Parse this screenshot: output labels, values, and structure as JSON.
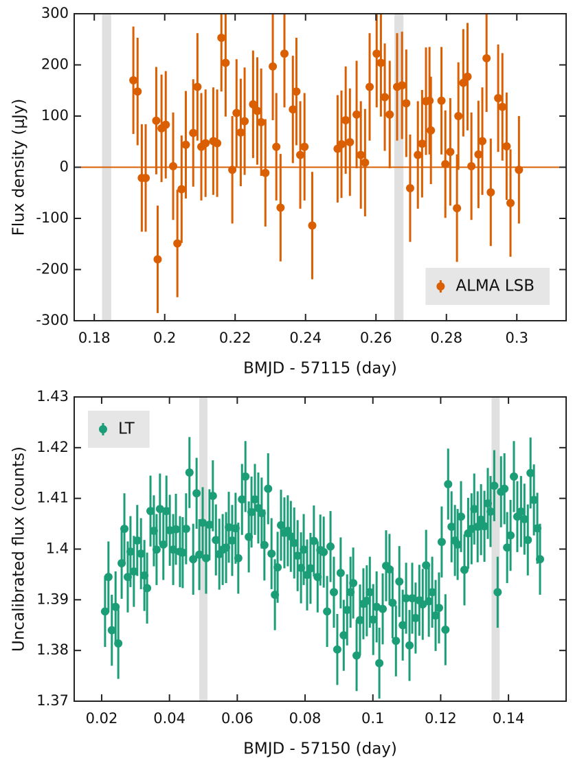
{
  "chart_data": [
    {
      "type": "scatter",
      "xlabel": "BMJD - 57115 (day)",
      "ylabel": "Flux density (μJy)",
      "xlim": [
        0.1743,
        0.314
      ],
      "xticks": [
        0.18,
        0.2,
        0.22,
        0.24,
        0.26,
        0.28,
        0.3
      ],
      "ylim": [
        -300,
        300
      ],
      "yticks": [
        -300,
        -200,
        -100,
        0,
        100,
        200,
        300
      ],
      "bands": [
        [
          0.1822,
          0.1848
        ],
        [
          0.2652,
          0.2678
        ]
      ],
      "band_color": "#e0e0e0",
      "hline": 0,
      "legend": "lower right",
      "x": [
        0.1911,
        0.1923,
        0.1935,
        0.1946,
        0.1976,
        0.198,
        0.1991,
        0.2003,
        0.2024,
        0.2036,
        0.2048,
        0.206,
        0.2081,
        0.2093,
        0.2104,
        0.2116,
        0.2138,
        0.2149,
        0.2161,
        0.2173,
        0.2192,
        0.2204,
        0.2216,
        0.2227,
        0.2251,
        0.2263,
        0.2274,
        0.2286,
        0.2307,
        0.2317,
        0.2329,
        0.234,
        0.2364,
        0.2374,
        0.2385,
        0.2397,
        0.2419,
        0.2491,
        0.2502,
        0.2514,
        0.2526,
        0.2545,
        0.2557,
        0.2569,
        0.2582,
        0.2602,
        0.2614,
        0.2625,
        0.2639,
        0.266,
        0.2674,
        0.2686,
        0.2697,
        0.2719,
        0.2731,
        0.2742,
        0.2752,
        0.2756,
        0.2786,
        0.2797,
        0.2811,
        0.283,
        0.2834,
        0.2848,
        0.286,
        0.2871,
        0.2891,
        0.2902,
        0.2914,
        0.2926,
        0.2947,
        0.2959,
        0.2971,
        0.2982,
        0.3006
      ],
      "series": [
        {
          "name": "ALMA LSB",
          "color": "#d95f02",
          "error": 105,
          "values": [
            170,
            148,
            -21,
            -21,
            91,
            -180,
            76,
            83,
            2,
            -149,
            -43,
            44,
            67,
            157,
            40,
            47,
            51,
            47,
            253,
            204,
            -5,
            106,
            68,
            90,
            123,
            110,
            88,
            -11,
            197,
            40,
            -79,
            222,
            113,
            148,
            24,
            40,
            -114,
            36,
            45,
            92,
            49,
            103,
            24,
            9,
            157,
            222,
            204,
            137,
            103,
            157,
            160,
            125,
            -41,
            24,
            46,
            129,
            130,
            72,
            130,
            6,
            30,
            -80,
            100,
            165,
            177,
            2,
            25,
            51,
            213,
            -49,
            135,
            118,
            41,
            -70,
            -5
          ]
        }
      ]
    },
    {
      "type": "scatter",
      "xlabel": "BMJD - 57150 (day)",
      "ylabel": "Uncalibrated flux (counts)",
      "xlim": [
        0.0119,
        0.157
      ],
      "xticks": [
        0.02,
        0.04,
        0.06,
        0.08,
        0.1,
        0.12,
        0.14
      ],
      "ylim": [
        1.37,
        1.43
      ],
      "yticks": [
        1.37,
        1.38,
        1.39,
        1.4,
        1.41,
        1.42,
        1.43
      ],
      "bands": [
        [
          0.0488,
          0.0512
        ],
        [
          0.135,
          0.1374
        ]
      ],
      "band_color": "#e0e0e0",
      "legend": "upper left",
      "x": [
        0.021,
        0.022,
        0.023,
        0.0241,
        0.0249,
        0.0259,
        0.0267,
        0.0277,
        0.0285,
        0.0295,
        0.0305,
        0.0316,
        0.0326,
        0.0334,
        0.0344,
        0.0354,
        0.0362,
        0.0372,
        0.0382,
        0.0391,
        0.0401,
        0.0411,
        0.0419,
        0.0431,
        0.0439,
        0.0449,
        0.0459,
        0.047,
        0.048,
        0.0488,
        0.0498,
        0.0508,
        0.0518,
        0.0528,
        0.0537,
        0.0547,
        0.0557,
        0.0567,
        0.0575,
        0.0585,
        0.0595,
        0.0603,
        0.0614,
        0.0624,
        0.0634,
        0.0642,
        0.0652,
        0.0662,
        0.0672,
        0.068,
        0.0691,
        0.0701,
        0.0711,
        0.0719,
        0.0729,
        0.0739,
        0.0749,
        0.0758,
        0.0768,
        0.0778,
        0.0788,
        0.0796,
        0.0806,
        0.0816,
        0.0826,
        0.0837,
        0.0845,
        0.0855,
        0.0865,
        0.0875,
        0.0885,
        0.0895,
        0.0905,
        0.0914,
        0.0924,
        0.0934,
        0.0942,
        0.0952,
        0.0962,
        0.0972,
        0.0982,
        0.0991,
        0.1001,
        0.1011,
        0.1019,
        0.1029,
        0.1039,
        0.1049,
        0.1058,
        0.1068,
        0.1078,
        0.1088,
        0.1098,
        0.1108,
        0.1116,
        0.1126,
        0.1137,
        0.1147,
        0.1157,
        0.1165,
        0.1175,
        0.1185,
        0.1195,
        0.1203,
        0.1214,
        0.1222,
        0.1232,
        0.1242,
        0.125,
        0.126,
        0.127,
        0.1281,
        0.1291,
        0.1299,
        0.1309,
        0.1319,
        0.1329,
        0.1339,
        0.1347,
        0.1358,
        0.1368,
        0.1378,
        0.1388,
        0.1396,
        0.1406,
        0.1416,
        0.1426,
        0.1437,
        0.1447,
        0.1457,
        0.1465,
        0.1475,
        0.1485,
        0.1493
      ],
      "series": [
        {
          "name": "LT",
          "color": "#1b9e77",
          "error": 0.007,
          "values": [
            1.3877,
            1.3945,
            1.384,
            1.3886,
            1.3814,
            1.3972,
            1.404,
            1.3945,
            1.3995,
            1.3956,
            1.4017,
            1.3991,
            1.3948,
            1.3923,
            1.4075,
            1.4036,
            1.3999,
            1.4079,
            1.4009,
            1.4075,
            1.4037,
            1.3999,
            1.4039,
            1.3995,
            1.3993,
            1.404,
            1.4151,
            1.398,
            1.411,
            1.3989,
            1.4052,
            1.3982,
            1.4048,
            1.4105,
            1.4018,
            1.399,
            1.3999,
            1.4003,
            1.4043,
            1.4017,
            1.4041,
            1.3982,
            1.4098,
            1.4143,
            1.4024,
            1.4073,
            1.4098,
            1.4081,
            1.4071,
            1.4008,
            1.4119,
            1.3991,
            1.391,
            1.3964,
            1.4047,
            1.4032,
            1.4036,
            1.4025,
            1.4012,
            1.3987,
            1.3963,
            1.3999,
            1.3949,
            1.3962,
            1.4016,
            1.3945,
            1.3998,
            1.3994,
            1.3877,
            1.4005,
            1.3915,
            1.3802,
            1.3953,
            1.383,
            1.388,
            1.3915,
            1.3933,
            1.379,
            1.386,
            1.3892,
            1.3898,
            1.3915,
            1.3861,
            1.3886,
            1.3775,
            1.3882,
            1.3967,
            1.396,
            1.3894,
            1.3819,
            1.3936,
            1.385,
            1.3903,
            1.381,
            1.3903,
            1.3864,
            1.3899,
            1.3891,
            1.3968,
            1.3897,
            1.3915,
            1.3869,
            1.3884,
            1.4014,
            1.3841,
            1.4128,
            1.4044,
            1.4017,
            1.4009,
            1.4064,
            1.3959,
            1.4031,
            1.404,
            1.4079,
            1.4044,
            1.4058,
            1.4045,
            1.409,
            1.4074,
            1.4125,
            1.3915,
            1.4113,
            1.4119,
            1.4003,
            1.4027,
            1.4143,
            1.4064,
            1.4074,
            1.4059,
            1.4018,
            1.415,
            1.4097,
            1.4041,
            1.398
          ]
        }
      ]
    }
  ]
}
